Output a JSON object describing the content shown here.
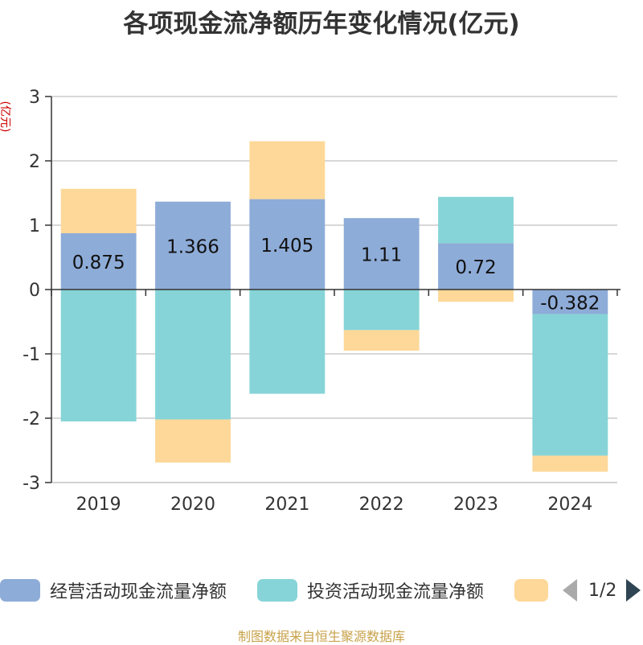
{
  "title": "各项现金流净额历年变化情况(亿元)",
  "source_note": "制图数据来自恒生聚源数据库",
  "pager_text": "1/2",
  "colors": {
    "operating": "#8eacd8",
    "investing": "#86d4d7",
    "financing": "#fdd898",
    "axis": "#333333",
    "grid": "#cccccc",
    "unit": "#cc0000"
  },
  "chart_data": {
    "type": "bar",
    "stacked": true,
    "title": "各项现金流净额历年变化情况(亿元)",
    "ylabel": "(亿元)",
    "categories": [
      "2019",
      "2020",
      "2021",
      "2022",
      "2023",
      "2024"
    ],
    "ylim": [
      -3,
      3
    ],
    "yticks": [
      3,
      2,
      1,
      0,
      -1,
      -2,
      -3
    ],
    "grid": true,
    "legend_position": "bottom",
    "series": [
      {
        "name": "经营活动现金流量净额",
        "color_key": "operating",
        "values": [
          0.875,
          1.366,
          1.405,
          1.11,
          0.72,
          -0.382
        ],
        "labels": [
          "0.875",
          "1.366",
          "1.405",
          "1.11",
          "0.72",
          "-0.382"
        ]
      },
      {
        "name": "投资活动现金流量净额",
        "color_key": "investing",
        "values": [
          -2.05,
          -2.02,
          -1.62,
          -0.63,
          0.72,
          -2.2
        ]
      },
      {
        "name": "",
        "color_key": "financing",
        "values": [
          0.69,
          -0.67,
          0.9,
          -0.32,
          -0.19,
          -0.25
        ]
      }
    ]
  }
}
